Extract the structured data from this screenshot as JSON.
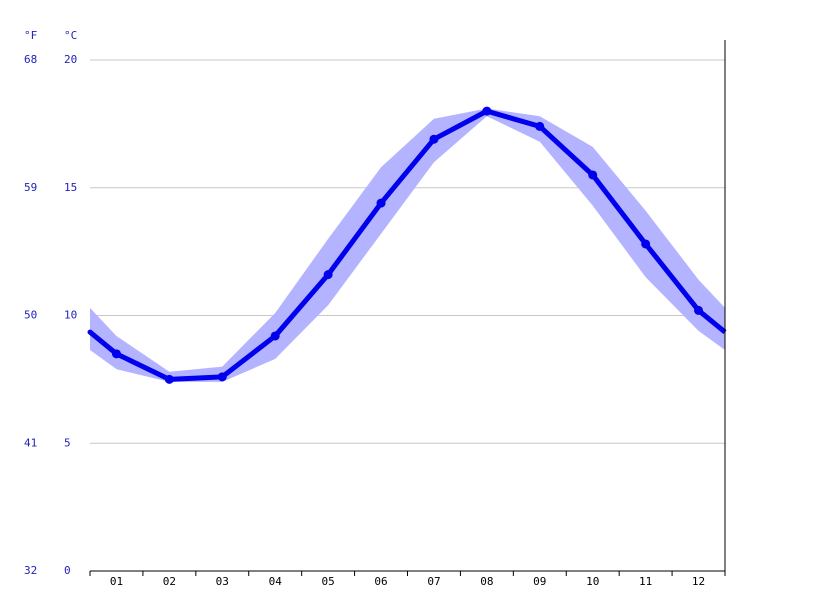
{
  "chart_data": {
    "type": "line",
    "y_label": "°C",
    "y2_label": "°F",
    "categories": [
      "01",
      "02",
      "03",
      "04",
      "05",
      "06",
      "07",
      "08",
      "09",
      "10",
      "11",
      "12"
    ],
    "values": [
      8.5,
      7.5,
      7.6,
      9.2,
      11.6,
      14.4,
      16.9,
      18.0,
      17.4,
      15.5,
      12.8,
      10.2
    ],
    "band_low": [
      7.9,
      7.4,
      7.4,
      8.3,
      10.4,
      13.2,
      16.0,
      17.8,
      16.8,
      14.3,
      11.5,
      9.4
    ],
    "band_high": [
      9.2,
      7.8,
      8.0,
      10.1,
      13.0,
      15.8,
      17.7,
      18.1,
      17.8,
      16.6,
      14.1,
      11.4
    ],
    "color": "#0000ee",
    "band_color": "#b3b3ff",
    "ylim": [
      0,
      20
    ],
    "yticks": [
      0,
      5,
      10,
      15,
      20
    ],
    "y2lim": [
      32,
      68
    ],
    "y2ticks": [
      32,
      41,
      50,
      59,
      68
    ],
    "grid": true
  }
}
